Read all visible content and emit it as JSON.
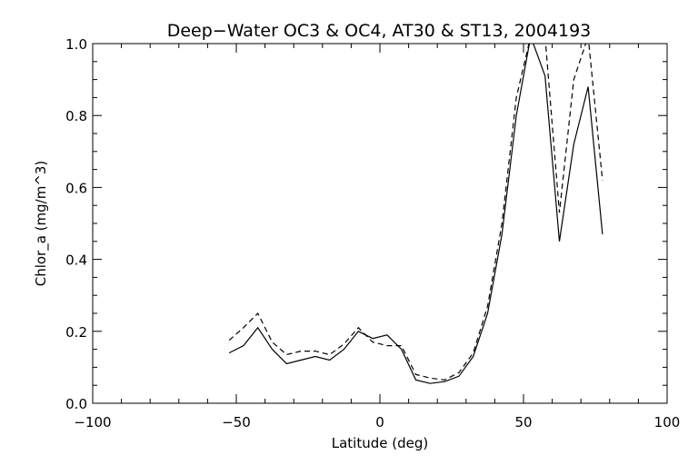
{
  "chart_data": {
    "type": "line",
    "title": "Deep−Water OC3 & OC4, AT30 & ST13, 2004193",
    "xlabel": "Latitude (deg)",
    "ylabel": "Chlor_a (mg/m^3)",
    "xlim": [
      -100,
      100
    ],
    "ylim": [
      0.0,
      1.0
    ],
    "xticks": [
      -100,
      -50,
      0,
      50,
      100
    ],
    "xtick_labels": [
      "−100",
      "−50",
      "0",
      "50",
      "100"
    ],
    "yticks": [
      0.0,
      0.2,
      0.4,
      0.6,
      0.8,
      1.0
    ],
    "ytick_labels": [
      "0.0",
      "0.2",
      "0.4",
      "0.6",
      "0.8",
      "1.0"
    ],
    "grid": false,
    "legend": "none",
    "series": [
      {
        "style": "solid",
        "color": "#000000",
        "x": [
          -52.5,
          -47.5,
          -42.5,
          -37.5,
          -32.5,
          -27.5,
          -22.5,
          -17.5,
          -12.5,
          -7.5,
          -2.5,
          2.5,
          7.5,
          12.5,
          17.5,
          22.5,
          27.5,
          32.5,
          37.5,
          42.5,
          47.5,
          52.5,
          57.5,
          62.5,
          67.5,
          72.5,
          77.5
        ],
        "y": [
          0.14,
          0.16,
          0.21,
          0.15,
          0.11,
          0.12,
          0.13,
          0.12,
          0.15,
          0.2,
          0.18,
          0.19,
          0.15,
          0.065,
          0.055,
          0.06,
          0.075,
          0.13,
          0.25,
          0.47,
          0.8,
          1.02,
          0.91,
          0.45,
          0.72,
          0.88,
          0.47
        ]
      },
      {
        "style": "dashed",
        "color": "#000000",
        "x": [
          -52.5,
          -47.5,
          -42.5,
          -37.5,
          -32.5,
          -27.5,
          -22.5,
          -17.5,
          -12.5,
          -7.5,
          -2.5,
          2.5,
          7.5,
          12.5,
          17.5,
          22.5,
          27.5,
          32.5,
          37.5,
          42.5,
          47.5,
          52.5,
          57.5,
          62.5,
          67.5,
          72.5,
          77.5
        ],
        "y": [
          0.175,
          0.21,
          0.25,
          0.17,
          0.135,
          0.145,
          0.145,
          0.135,
          0.165,
          0.21,
          0.17,
          0.16,
          0.16,
          0.08,
          0.07,
          0.065,
          0.085,
          0.14,
          0.27,
          0.5,
          0.85,
          1.02,
          1.02,
          0.53,
          0.9,
          1.02,
          0.62
        ]
      }
    ]
  }
}
